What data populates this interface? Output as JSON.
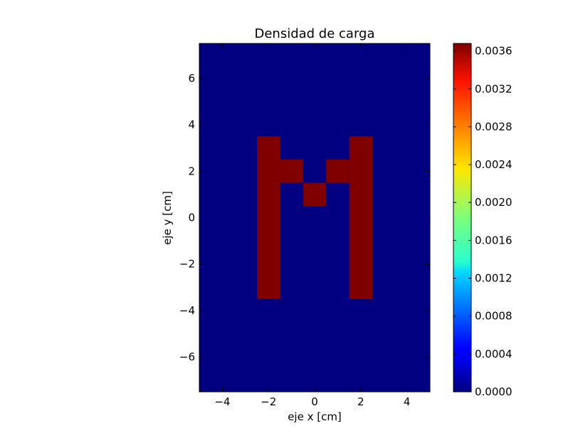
{
  "chart_data": {
    "type": "heatmap",
    "title": "Densidad de carga",
    "xlabel": "eje x [cm]",
    "ylabel": "eje y [cm]",
    "xlim": [
      -5,
      5
    ],
    "ylim": [
      -7.5,
      7.5
    ],
    "x_ticks": [
      -4,
      -2,
      0,
      2,
      4
    ],
    "x_tick_labels": [
      "−4",
      "−2",
      "0",
      "2",
      "4"
    ],
    "y_ticks": [
      -6,
      -4,
      -2,
      0,
      2,
      4,
      6
    ],
    "y_tick_labels": [
      "−6",
      "−4",
      "−2",
      "0",
      "2",
      "4",
      "6"
    ],
    "cell_size": 1,
    "background_value": 0.0,
    "cells": [
      {
        "x": [
          -2.5,
          -1.5
        ],
        "y": [
          -3.5,
          3.5
        ],
        "value": 0.00368
      },
      {
        "x": [
          -1.5,
          -0.5
        ],
        "y": [
          1.5,
          2.5
        ],
        "value": 0.00368
      },
      {
        "x": [
          -0.5,
          0.5
        ],
        "y": [
          0.5,
          1.5
        ],
        "value": 0.00368
      },
      {
        "x": [
          0.5,
          1.5
        ],
        "y": [
          1.5,
          2.5
        ],
        "value": 0.00368
      },
      {
        "x": [
          1.5,
          2.5
        ],
        "y": [
          -3.5,
          3.5
        ],
        "value": 0.00368
      }
    ],
    "colormap": "jet",
    "colorbar": {
      "min": 0.0,
      "max": 0.00368,
      "ticks": [
        0.0,
        0.0004,
        0.0008,
        0.0012,
        0.0016,
        0.002,
        0.0024,
        0.0028,
        0.0032,
        0.0036
      ],
      "tick_labels": [
        "0.0000",
        "0.0004",
        "0.0008",
        "0.0012",
        "0.0016",
        "0.0020",
        "0.0024",
        "0.0028",
        "0.0032",
        "0.0036"
      ]
    },
    "grid": false
  }
}
